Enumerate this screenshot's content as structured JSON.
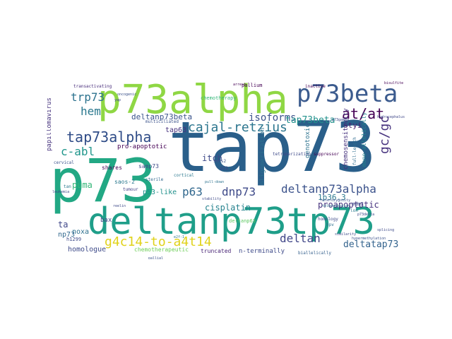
{
  "words": [
    {
      "text": "tap73",
      "color": "#2a5f8a"
    },
    {
      "text": "p73alpha",
      "color": "#8fd744"
    },
    {
      "text": "p73beta",
      "color": "#3b5b8e"
    },
    {
      "text": "p73",
      "color": "#22a884"
    },
    {
      "text": "deltanp73tp73",
      "color": "#1f9e89"
    },
    {
      "text": "tap73alpha",
      "color": "#2f4c87"
    },
    {
      "text": "cajal-retzius",
      "color": "#2b758e"
    },
    {
      "text": "deltanp73alpha",
      "color": "#3b528b"
    },
    {
      "text": "g4c14-to-a4t14",
      "color": "#e0d21a"
    },
    {
      "text": "deltanp73beta",
      "color": "#3a538b"
    },
    {
      "text": "at/at",
      "color": "#440154"
    },
    {
      "text": "gc/gc",
      "color": "#46327e"
    },
    {
      "text": "trp73",
      "color": "#2c728e"
    },
    {
      "text": "hem",
      "color": "#2a788e"
    },
    {
      "text": "c-abl",
      "color": "#1f968b"
    },
    {
      "text": "dnp73",
      "color": "#3e4a89"
    },
    {
      "text": "p63",
      "color": "#31688e"
    },
    {
      "text": "isoforms",
      "color": "#3b528b"
    },
    {
      "text": "tap73beta",
      "color": "#21918c"
    },
    {
      "text": "deltan",
      "color": "#404688"
    },
    {
      "text": "deltatap73",
      "color": "#33638d"
    },
    {
      "text": "puma",
      "color": "#35b779"
    },
    {
      "text": "tap63",
      "color": "#46327e"
    },
    {
      "text": "itch",
      "color": "#3e4a89"
    },
    {
      "text": "p53-like",
      "color": "#21918c"
    },
    {
      "text": "cisplatin",
      "color": "#26828e"
    },
    {
      "text": "noxa",
      "color": "#2d708e"
    },
    {
      "text": "homologue",
      "color": "#3e4a89"
    },
    {
      "text": "ta",
      "color": "#3f4788"
    },
    {
      "text": "np73",
      "color": "#31688e"
    },
    {
      "text": "styi",
      "color": "#481f70"
    },
    {
      "text": "proapoptotic",
      "color": "#46327e"
    },
    {
      "text": "1p36.3",
      "color": "#2a788e"
    },
    {
      "text": "pro-apoptotic",
      "color": "#440154"
    },
    {
      "text": "samp73",
      "color": "#3e4a89"
    },
    {
      "text": "bax",
      "color": "#414487"
    },
    {
      "text": "saos-2",
      "color": "#2a788e"
    },
    {
      "text": "shares",
      "color": "#440154"
    },
    {
      "text": "papillomavirus",
      "color": "#46337e"
    },
    {
      "text": "oligomerization",
      "color": "#2d708e"
    },
    {
      "text": "genotoxic",
      "color": "#2c728e"
    },
    {
      "text": "chemosensitivity",
      "color": "#46327e"
    },
    {
      "text": "mono-allelically",
      "color": "#25848e"
    },
    {
      "text": "n-terminally",
      "color": "#3e4a89"
    },
    {
      "text": "truncated",
      "color": "#482475"
    },
    {
      "text": "chemotherapeutic",
      "color": "#6ece58"
    },
    {
      "text": "chemotherapy",
      "color": "#35b779"
    },
    {
      "text": "transactivating",
      "color": "#472c7a"
    },
    {
      "text": "pallium",
      "color": "#440154"
    },
    {
      "text": "inactive",
      "color": "#440154"
    },
    {
      "text": "multiciliated",
      "color": "#3b528b"
    },
    {
      "text": "deltanp63",
      "color": "#5ec962"
    },
    {
      "text": "tetramerization",
      "color": "#3e4a89"
    },
    {
      "text": "suppressor",
      "color": "#440154"
    },
    {
      "text": "h1299",
      "color": "#3e4a89"
    },
    {
      "text": "tumour",
      "color": "#424086"
    },
    {
      "text": "sterile",
      "color": "#31688e"
    },
    {
      "text": "cortical",
      "color": "#2a788e"
    },
    {
      "text": "saos2",
      "color": "#3b528b"
    },
    {
      "text": "p21",
      "color": "#433e85"
    },
    {
      "text": "full-length",
      "color": "#2f6c8e"
    },
    {
      "text": "mdm2",
      "color": "#3e4a89"
    },
    {
      "text": "loh",
      "color": "#2a788e"
    },
    {
      "text": "homology",
      "color": "#3e4a89"
    },
    {
      "text": "hpv",
      "color": "#2d708e"
    },
    {
      "text": "biallelically",
      "color": "#35608d"
    },
    {
      "text": "e2f-1",
      "color": "#2a788e"
    },
    {
      "text": "yap",
      "color": "#3e4a89"
    },
    {
      "text": "p73gamma",
      "color": "#3e4a89"
    },
    {
      "text": "hydrocephalus",
      "color": "#3f4788"
    },
    {
      "text": "bisulfite",
      "color": "#440154"
    },
    {
      "text": "cervical",
      "color": "#3b528b"
    },
    {
      "text": "arrest",
      "color": "#440154"
    },
    {
      "text": "stability",
      "color": "#3e4a89"
    },
    {
      "text": "telencephalon",
      "color": "#2c728e"
    },
    {
      "text": "heterozygosity",
      "color": "#3b528b"
    },
    {
      "text": "reelin",
      "color": "#3e4a89"
    },
    {
      "text": "splicing",
      "color": "#3e4a89"
    },
    {
      "text": "pull-down",
      "color": "#2c728e"
    },
    {
      "text": "pallial",
      "color": "#3b528b"
    },
    {
      "text": "similarity",
      "color": "#3e4a89"
    },
    {
      "text": "hypermethylation",
      "color": "#3b528b"
    },
    {
      "text": "tan",
      "color": "#2a788e"
    },
    {
      "text": "leukemia",
      "color": "#3e4a89"
    },
    {
      "text": "oncogenic",
      "color": "#3b528b"
    },
    {
      "text": "p73delta",
      "color": "#3e4a89"
    }
  ]
}
